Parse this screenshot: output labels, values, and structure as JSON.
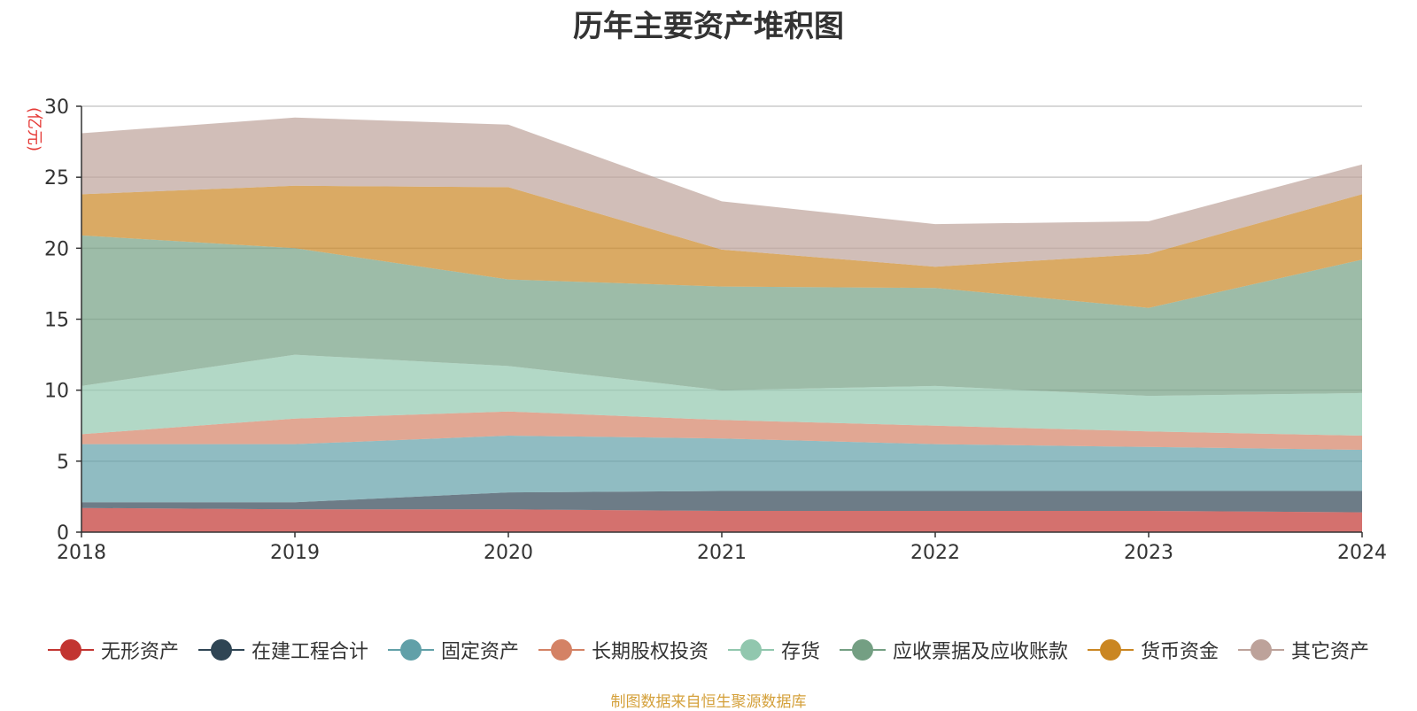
{
  "chart_data": {
    "type": "area",
    "title": "历年主要资产堆积图",
    "unit_label": "(亿元)",
    "x": [
      "2018",
      "2019",
      "2020",
      "2021",
      "2022",
      "2023",
      "2024"
    ],
    "ylim": [
      0,
      30
    ],
    "yticks": [
      0,
      5,
      10,
      15,
      20,
      25,
      30
    ],
    "stacked": true,
    "grid": true,
    "legend_position": "bottom",
    "series": [
      {
        "name": "无形资产",
        "color": "#c23531",
        "values": [
          1.7,
          1.6,
          1.6,
          1.5,
          1.5,
          1.5,
          1.4
        ]
      },
      {
        "name": "在建工程合计",
        "color": "#2f4554",
        "values": [
          0.4,
          0.5,
          1.2,
          1.4,
          1.4,
          1.4,
          1.5
        ]
      },
      {
        "name": "固定资产",
        "color": "#61a0a8",
        "values": [
          4.1,
          4.1,
          4.0,
          3.7,
          3.3,
          3.1,
          2.9
        ]
      },
      {
        "name": "长期股权投资",
        "color": "#d48265",
        "values": [
          0.7,
          1.8,
          1.7,
          1.3,
          1.3,
          1.1,
          1.0
        ]
      },
      {
        "name": "存货",
        "color": "#91c7ae",
        "values": [
          3.4,
          4.5,
          3.2,
          2.1,
          2.8,
          2.5,
          3.0
        ]
      },
      {
        "name": "应收票据及应收账款",
        "color": "#749f83",
        "values": [
          10.6,
          7.5,
          6.1,
          7.3,
          6.9,
          6.2,
          9.4
        ]
      },
      {
        "name": "货币资金",
        "color": "#ca8622",
        "values": [
          2.9,
          4.4,
          6.5,
          2.6,
          1.5,
          3.8,
          4.6
        ]
      },
      {
        "name": "其它资产",
        "color": "#bda29a",
        "values": [
          4.3,
          4.8,
          4.4,
          3.4,
          3.0,
          2.3,
          2.1
        ]
      }
    ]
  },
  "footer": {
    "source_note": "制图数据来自恒生聚源数据库"
  }
}
